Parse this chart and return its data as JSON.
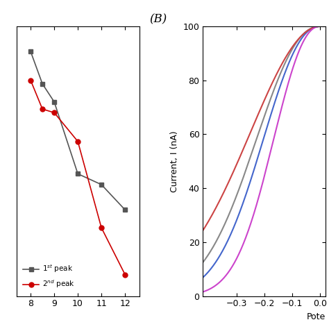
{
  "panel_A": {
    "peak1_x": [
      8,
      8.5,
      9,
      10,
      11,
      12
    ],
    "peak1_y": [
      93,
      84,
      79,
      59,
      56,
      49
    ],
    "peak2_x": [
      8,
      8.5,
      9,
      10,
      11,
      12
    ],
    "peak2_y": [
      85,
      77,
      76,
      68,
      44,
      31
    ],
    "color1": "#555555",
    "color2": "#cc0000",
    "marker1": "s",
    "marker2": "o",
    "label1": "1$^{st}$ peak",
    "label2": "2$^{nd}$ peak",
    "xlim": [
      7.4,
      12.6
    ],
    "ylim": [
      25,
      100
    ],
    "xticks": [
      8,
      9,
      10,
      11,
      12
    ]
  },
  "panel_B": {
    "label": "(B)",
    "ylabel": "Current, I (nA)",
    "xlabel": "Pote",
    "ylim": [
      0.0,
      100.0
    ],
    "yticks": [
      0.0,
      20.0,
      40.0,
      60.0,
      80.0,
      100.0
    ],
    "xlim": [
      -0.42,
      0.02
    ],
    "xticks": [
      0.0,
      -0.1,
      -0.2,
      -0.3
    ],
    "curves": [
      {
        "color": "#888888",
        "k": 14.0,
        "n": 2.2
      },
      {
        "color": "#4466cc",
        "k": 18.0,
        "n": 2.2
      },
      {
        "color": "#cc4444",
        "k": 8.0,
        "n": 2.0
      },
      {
        "color": "#cc44cc",
        "k": 28.0,
        "n": 2.2
      }
    ]
  }
}
